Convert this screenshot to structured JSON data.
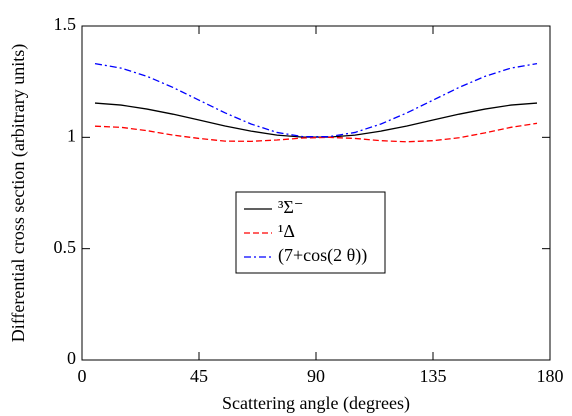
{
  "chart_data": {
    "type": "line",
    "x_label": "Scattering angle (degrees)",
    "y_label": "Differential cross section (arbitrary units)",
    "x": [
      5,
      15,
      25,
      35,
      45,
      55,
      65,
      75,
      85,
      95,
      105,
      115,
      125,
      135,
      145,
      155,
      165,
      175
    ],
    "series": [
      {
        "name": "³Σ⁻",
        "color": "#000000",
        "dash": "solid",
        "values": [
          1.154,
          1.145,
          1.127,
          1.104,
          1.078,
          1.051,
          1.028,
          1.01,
          1.001,
          1.001,
          1.01,
          1.028,
          1.051,
          1.078,
          1.104,
          1.127,
          1.145,
          1.154
        ]
      },
      {
        "name": "¹Δ",
        "color": "#ff0000",
        "dash": "dashed",
        "values": [
          1.05,
          1.045,
          1.03,
          1.01,
          0.995,
          0.983,
          0.982,
          0.988,
          0.997,
          1.0,
          0.995,
          0.985,
          0.98,
          0.985,
          0.998,
          1.02,
          1.045,
          1.063
        ]
      },
      {
        "name": "(7+cos(2 θ))",
        "color": "#0000ff",
        "dash": "dashdot",
        "values": [
          1.331,
          1.311,
          1.274,
          1.224,
          1.167,
          1.11,
          1.06,
          1.022,
          1.003,
          1.003,
          1.022,
          1.06,
          1.11,
          1.167,
          1.224,
          1.274,
          1.311,
          1.331
        ]
      }
    ],
    "xlim": [
      0,
      180
    ],
    "xticks": [
      0,
      45,
      90,
      135,
      180
    ],
    "ylim": [
      0,
      1.5
    ],
    "yticks": [
      0,
      0.5,
      1,
      1.5
    ]
  }
}
